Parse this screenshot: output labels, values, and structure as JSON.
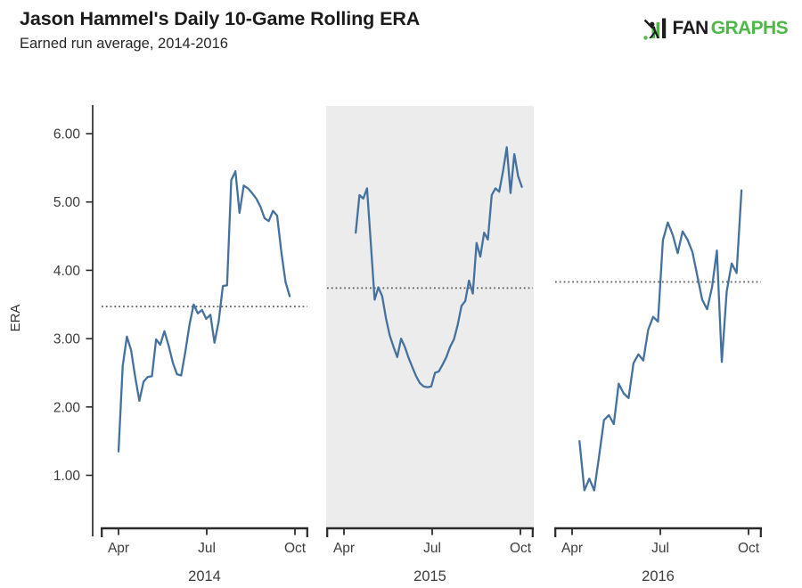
{
  "header": {
    "title": "Jason Hammel's Daily 10-Game Rolling ERA",
    "subtitle": "Earned run average, 2014-2016",
    "logo": {
      "fan": "FAN",
      "graphs": "GRAPHS"
    }
  },
  "colors": {
    "line": "#44719e",
    "shaded_panel": "#ececec",
    "ref_line": "#666666",
    "axis": "#2a2a2a",
    "tick_text": "#3c3c3c",
    "logo_green": "#4db848",
    "logo_black": "#1c1c1c"
  },
  "chart_data": {
    "type": "line",
    "title": "Jason Hammel's Daily 10-Game Rolling ERA",
    "subtitle": "Earned run average, 2014-2016",
    "ylabel": "ERA",
    "ylim": [
      0.2,
      6.4
    ],
    "grid": false,
    "legend": "none",
    "yticks": [
      {
        "value": 6,
        "label": "6.00"
      },
      {
        "value": 5,
        "label": "5.00"
      },
      {
        "value": 4,
        "label": "4.00"
      },
      {
        "value": 3,
        "label": "3.00"
      },
      {
        "value": 2,
        "label": "2.00"
      },
      {
        "value": 1,
        "label": "1.00"
      }
    ],
    "x_tick_labels": [
      "Apr",
      "Jul",
      "Oct"
    ],
    "x_tick_months": [
      0,
      3,
      6
    ],
    "panels": [
      {
        "year": "2014",
        "shaded": false,
        "reference_era": 3.47,
        "x_start_month": 0.0,
        "x_end_month": 5.82,
        "rolling_era": [
          1.35,
          2.6,
          3.03,
          2.83,
          2.44,
          2.09,
          2.37,
          2.44,
          2.45,
          2.99,
          2.91,
          3.11,
          2.9,
          2.65,
          2.48,
          2.46,
          2.81,
          3.2,
          3.5,
          3.37,
          3.42,
          3.29,
          3.35,
          2.94,
          3.25,
          3.77,
          3.78,
          5.32,
          5.45,
          4.84,
          5.24,
          5.2,
          5.13,
          5.05,
          4.93,
          4.76,
          4.72,
          4.87,
          4.8,
          4.27,
          3.83,
          3.62
        ]
      },
      {
        "year": "2015",
        "shaded": true,
        "reference_era": 3.74,
        "x_start_month": 0.4,
        "x_end_month": 6.05,
        "rolling_era": [
          4.55,
          5.1,
          5.05,
          5.2,
          4.4,
          3.57,
          3.75,
          3.62,
          3.3,
          3.05,
          2.88,
          2.73,
          3.0,
          2.88,
          2.72,
          2.58,
          2.45,
          2.35,
          2.3,
          2.29,
          2.3,
          2.5,
          2.52,
          2.62,
          2.73,
          2.88,
          2.99,
          3.2,
          3.48,
          3.55,
          3.85,
          3.66,
          4.4,
          4.2,
          4.55,
          4.45,
          5.1,
          5.2,
          5.15,
          5.45,
          5.8,
          5.13,
          5.7,
          5.38,
          5.22
        ]
      },
      {
        "year": "2016",
        "shaded": false,
        "reference_era": 3.83,
        "x_start_month": 0.25,
        "x_end_month": 5.76,
        "rolling_era": [
          1.5,
          0.78,
          0.95,
          0.78,
          1.28,
          1.81,
          1.88,
          1.75,
          2.34,
          2.2,
          2.13,
          2.64,
          2.77,
          2.68,
          3.13,
          3.32,
          3.25,
          4.44,
          4.7,
          4.52,
          4.25,
          4.57,
          4.45,
          4.27,
          3.92,
          3.57,
          3.43,
          3.75,
          4.29,
          2.66,
          3.69,
          4.1,
          3.96,
          5.17
        ]
      }
    ]
  }
}
